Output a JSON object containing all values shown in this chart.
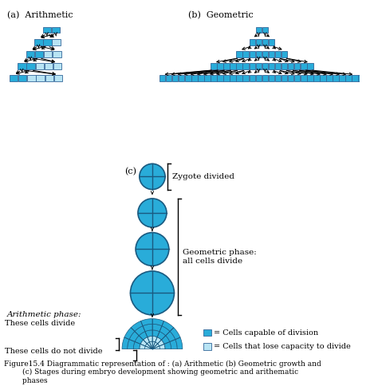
{
  "bg_color": "#ffffff",
  "dark_blue": "#29acd9",
  "light_blue": "#b8e4f4",
  "cell_border": "#1a7aaa",
  "text_color": "#000000",
  "label_a": "(a)  Arithmetic",
  "label_b": "(b)  Geometric",
  "label_c": "(c)",
  "zygote_label": "Zygote divided",
  "geo_label": "Geometric phase:\nall cells divide",
  "arith_label": "Arithmetic phase:",
  "divide_label": "These cells divide",
  "no_divide_label": "These cells do not divide",
  "legend1": "= Cells capable of division",
  "legend2": "= Cells that lose capacity to divide",
  "caption": "Figure15.4 Diagrammatic representation of : (a) Arithmetic (b) Geometric growth and\n       (c) Stages during embryo development showing geometric and arithematic\n       phases"
}
